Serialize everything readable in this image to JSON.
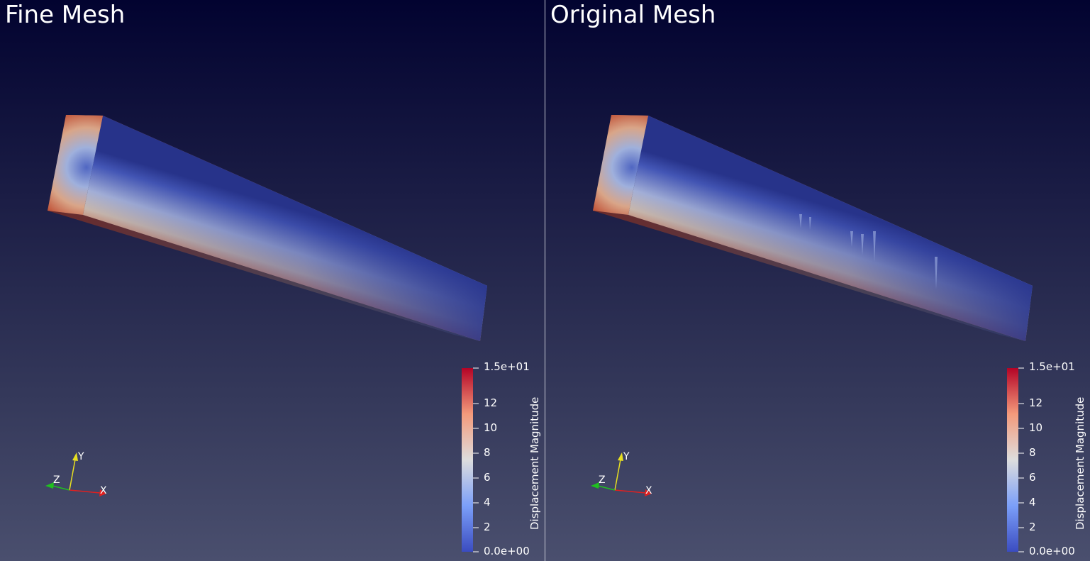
{
  "views": [
    {
      "title": "Fine Mesh",
      "variant": "fine",
      "colorbar": {
        "title": "Displacement Magnitude",
        "range": [
          0,
          15
        ],
        "ticks": [
          "1.5e+01",
          "12",
          "10",
          "8",
          "6",
          "4",
          "2",
          "0.0e+00"
        ],
        "tick_values": [
          15,
          12,
          10,
          8,
          6,
          4,
          2,
          0
        ],
        "colormap": "cool-to-warm"
      },
      "axes": {
        "x": "X",
        "y": "Y",
        "z": "Z"
      }
    },
    {
      "title": "Original Mesh",
      "variant": "original",
      "colorbar": {
        "title": "Displacement Magnitude",
        "range": [
          0,
          15
        ],
        "ticks": [
          "1.5e+01",
          "12",
          "10",
          "8",
          "6",
          "4",
          "2",
          "0.0e+00"
        ],
        "tick_values": [
          15,
          12,
          10,
          8,
          6,
          4,
          2,
          0
        ],
        "colormap": "cool-to-warm"
      },
      "axes": {
        "x": "X",
        "y": "Y",
        "z": "Z"
      }
    }
  ],
  "colors": {
    "background_top": "#020330",
    "background_bottom": "#4a4f6e",
    "colormap_low": "#3b4cc0",
    "colormap_mid": "#dddddd",
    "colormap_high": "#b40426",
    "axis_x": "#e02020",
    "axis_y": "#e8e020",
    "axis_z": "#20c020"
  }
}
